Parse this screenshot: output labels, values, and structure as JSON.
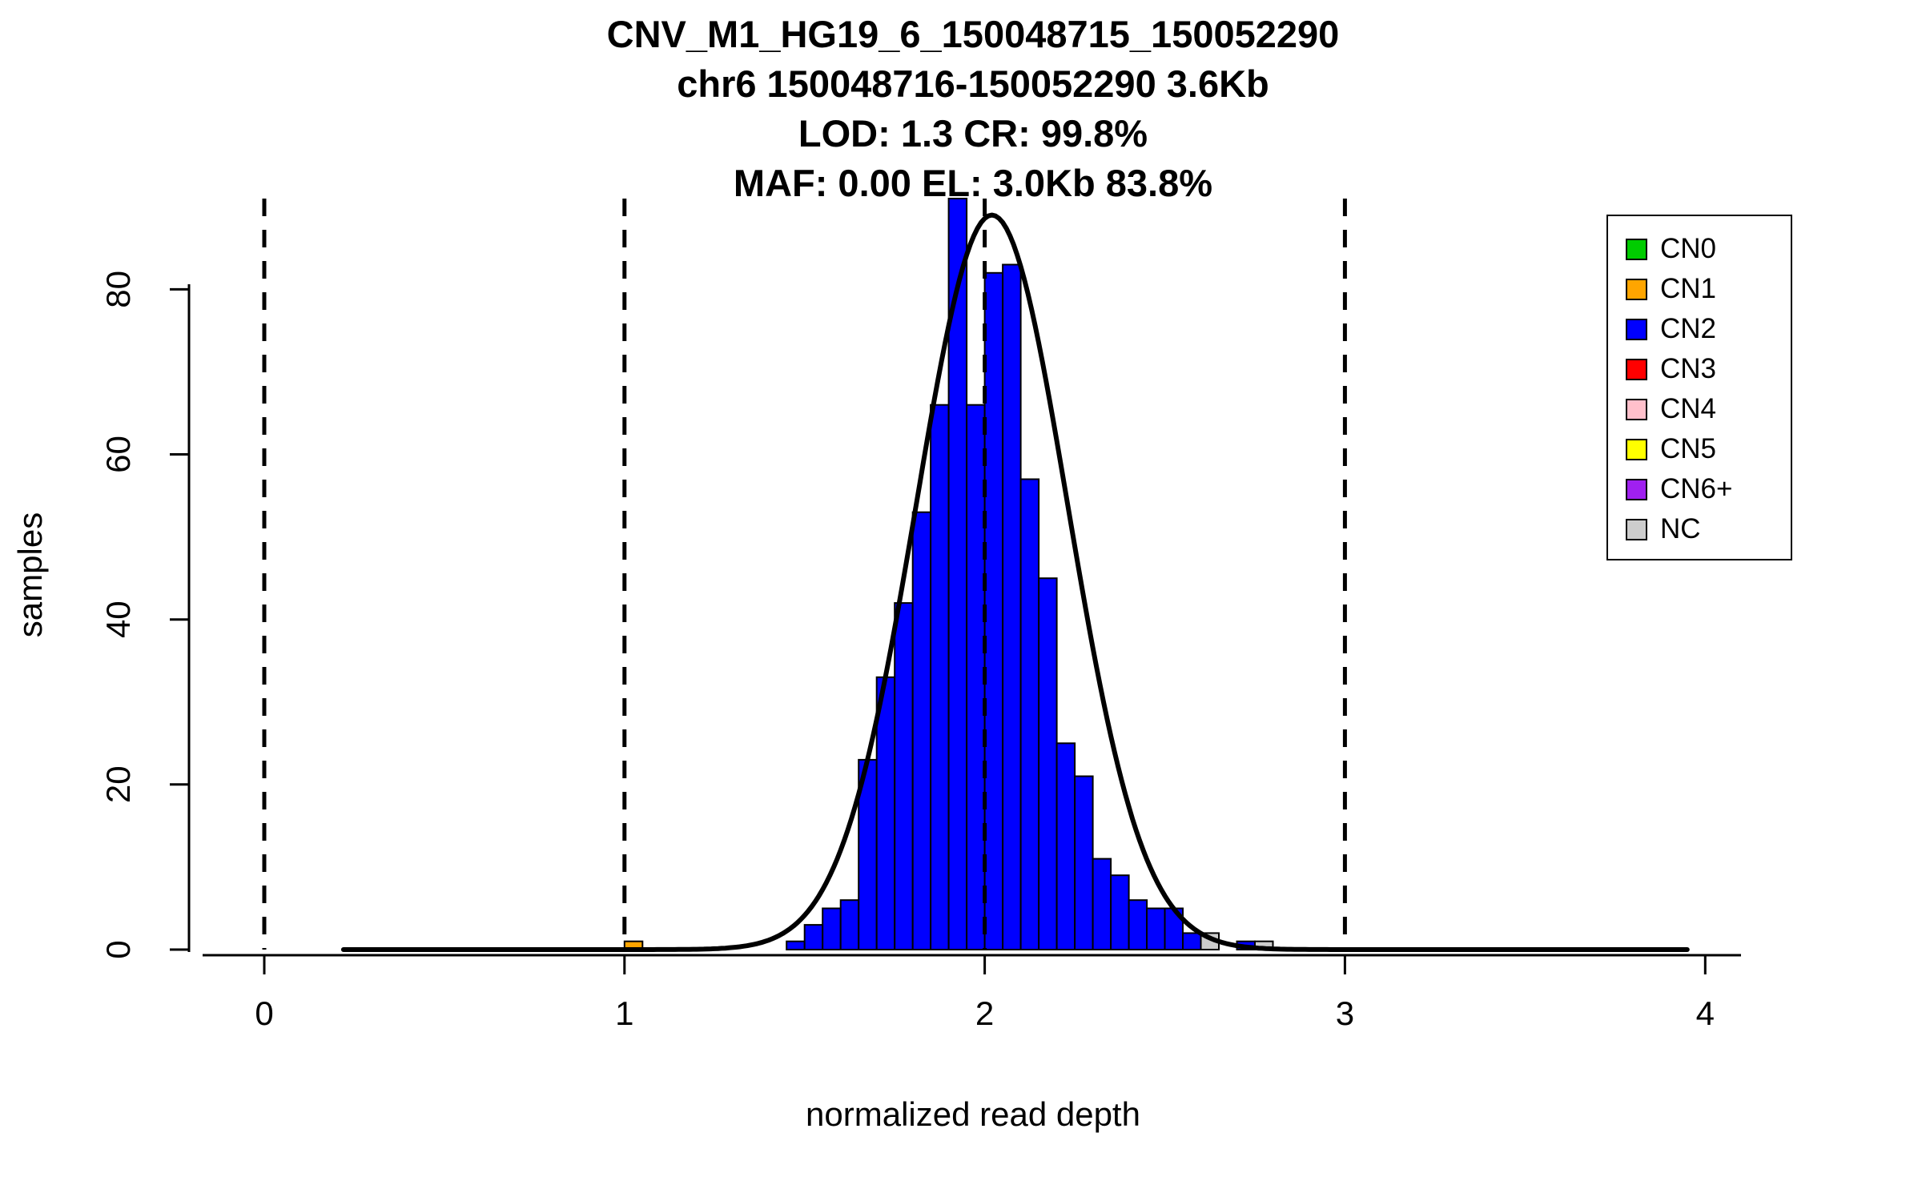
{
  "chart_data": {
    "type": "bar",
    "subtype": "histogram",
    "title_lines": [
      "CNV_M1_HG19_6_150048715_150052290",
      "chr6 150048716-150052290 3.6Kb",
      "LOD: 1.3 CR: 99.8%",
      "MAF: 0.00 EL: 3.0Kb 83.8%"
    ],
    "xlabel": "normalized read depth",
    "ylabel": "samples",
    "xlim": [
      -0.2,
      4.135
    ],
    "ylim": [
      0,
      91
    ],
    "x_ticks": [
      0,
      1,
      2,
      3,
      4
    ],
    "y_ticks": [
      0,
      20,
      40,
      60,
      80
    ],
    "grid": false,
    "background": "#FFFFFF",
    "line_color": "#000000",
    "legend_position": "top-right",
    "legend": [
      {
        "label": "CN0",
        "color": "#00CC00"
      },
      {
        "label": "CN1",
        "color": "#FFA500"
      },
      {
        "label": "CN2",
        "color": "#0000FF"
      },
      {
        "label": "CN3",
        "color": "#FF0000"
      },
      {
        "label": "CN4",
        "color": "#FFC0CB"
      },
      {
        "label": "CN5",
        "color": "#FFFF00"
      },
      {
        "label": "CN6+",
        "color": "#A020F0"
      },
      {
        "label": "NC",
        "color": "#CDCDCD"
      }
    ],
    "bin_width": 0.05,
    "bars": [
      {
        "x": 1.0,
        "h": 1,
        "cn": "CN1"
      },
      {
        "x": 1.45,
        "h": 1,
        "cn": "CN2"
      },
      {
        "x": 1.5,
        "h": 3,
        "cn": "CN2"
      },
      {
        "x": 1.55,
        "h": 5,
        "cn": "CN2"
      },
      {
        "x": 1.6,
        "h": 6,
        "cn": "CN2"
      },
      {
        "x": 1.65,
        "h": 23,
        "cn": "CN2"
      },
      {
        "x": 1.7,
        "h": 33,
        "cn": "CN2"
      },
      {
        "x": 1.75,
        "h": 42,
        "cn": "CN2"
      },
      {
        "x": 1.8,
        "h": 53,
        "cn": "CN2"
      },
      {
        "x": 1.85,
        "h": 66,
        "cn": "CN2"
      },
      {
        "x": 1.9,
        "h": 91,
        "cn": "CN2"
      },
      {
        "x": 1.95,
        "h": 66,
        "cn": "CN2"
      },
      {
        "x": 2.0,
        "h": 82,
        "cn": "CN2"
      },
      {
        "x": 2.05,
        "h": 83,
        "cn": "CN2"
      },
      {
        "x": 2.1,
        "h": 57,
        "cn": "CN2"
      },
      {
        "x": 2.15,
        "h": 45,
        "cn": "CN2"
      },
      {
        "x": 2.2,
        "h": 25,
        "cn": "CN2"
      },
      {
        "x": 2.25,
        "h": 21,
        "cn": "CN2"
      },
      {
        "x": 2.3,
        "h": 11,
        "cn": "CN2"
      },
      {
        "x": 2.35,
        "h": 9,
        "cn": "CN2"
      },
      {
        "x": 2.4,
        "h": 6,
        "cn": "CN2"
      },
      {
        "x": 2.45,
        "h": 5,
        "cn": "CN2"
      },
      {
        "x": 2.5,
        "h": 5,
        "cn": "CN2"
      },
      {
        "x": 2.55,
        "h": 2,
        "cn": "CN2"
      },
      {
        "x": 2.6,
        "h": 2,
        "cn": "NC"
      },
      {
        "x": 2.7,
        "h": 1,
        "cn": "CN2"
      },
      {
        "x": 2.75,
        "h": 1,
        "cn": "NC"
      }
    ],
    "reference_lines_x": [
      0,
      1,
      2,
      3
    ],
    "fit_curve": {
      "shape": "gaussian",
      "mean": 2.02,
      "sd": 0.21,
      "peak": 89,
      "x_start": 0.22,
      "x_end": 3.95
    }
  }
}
